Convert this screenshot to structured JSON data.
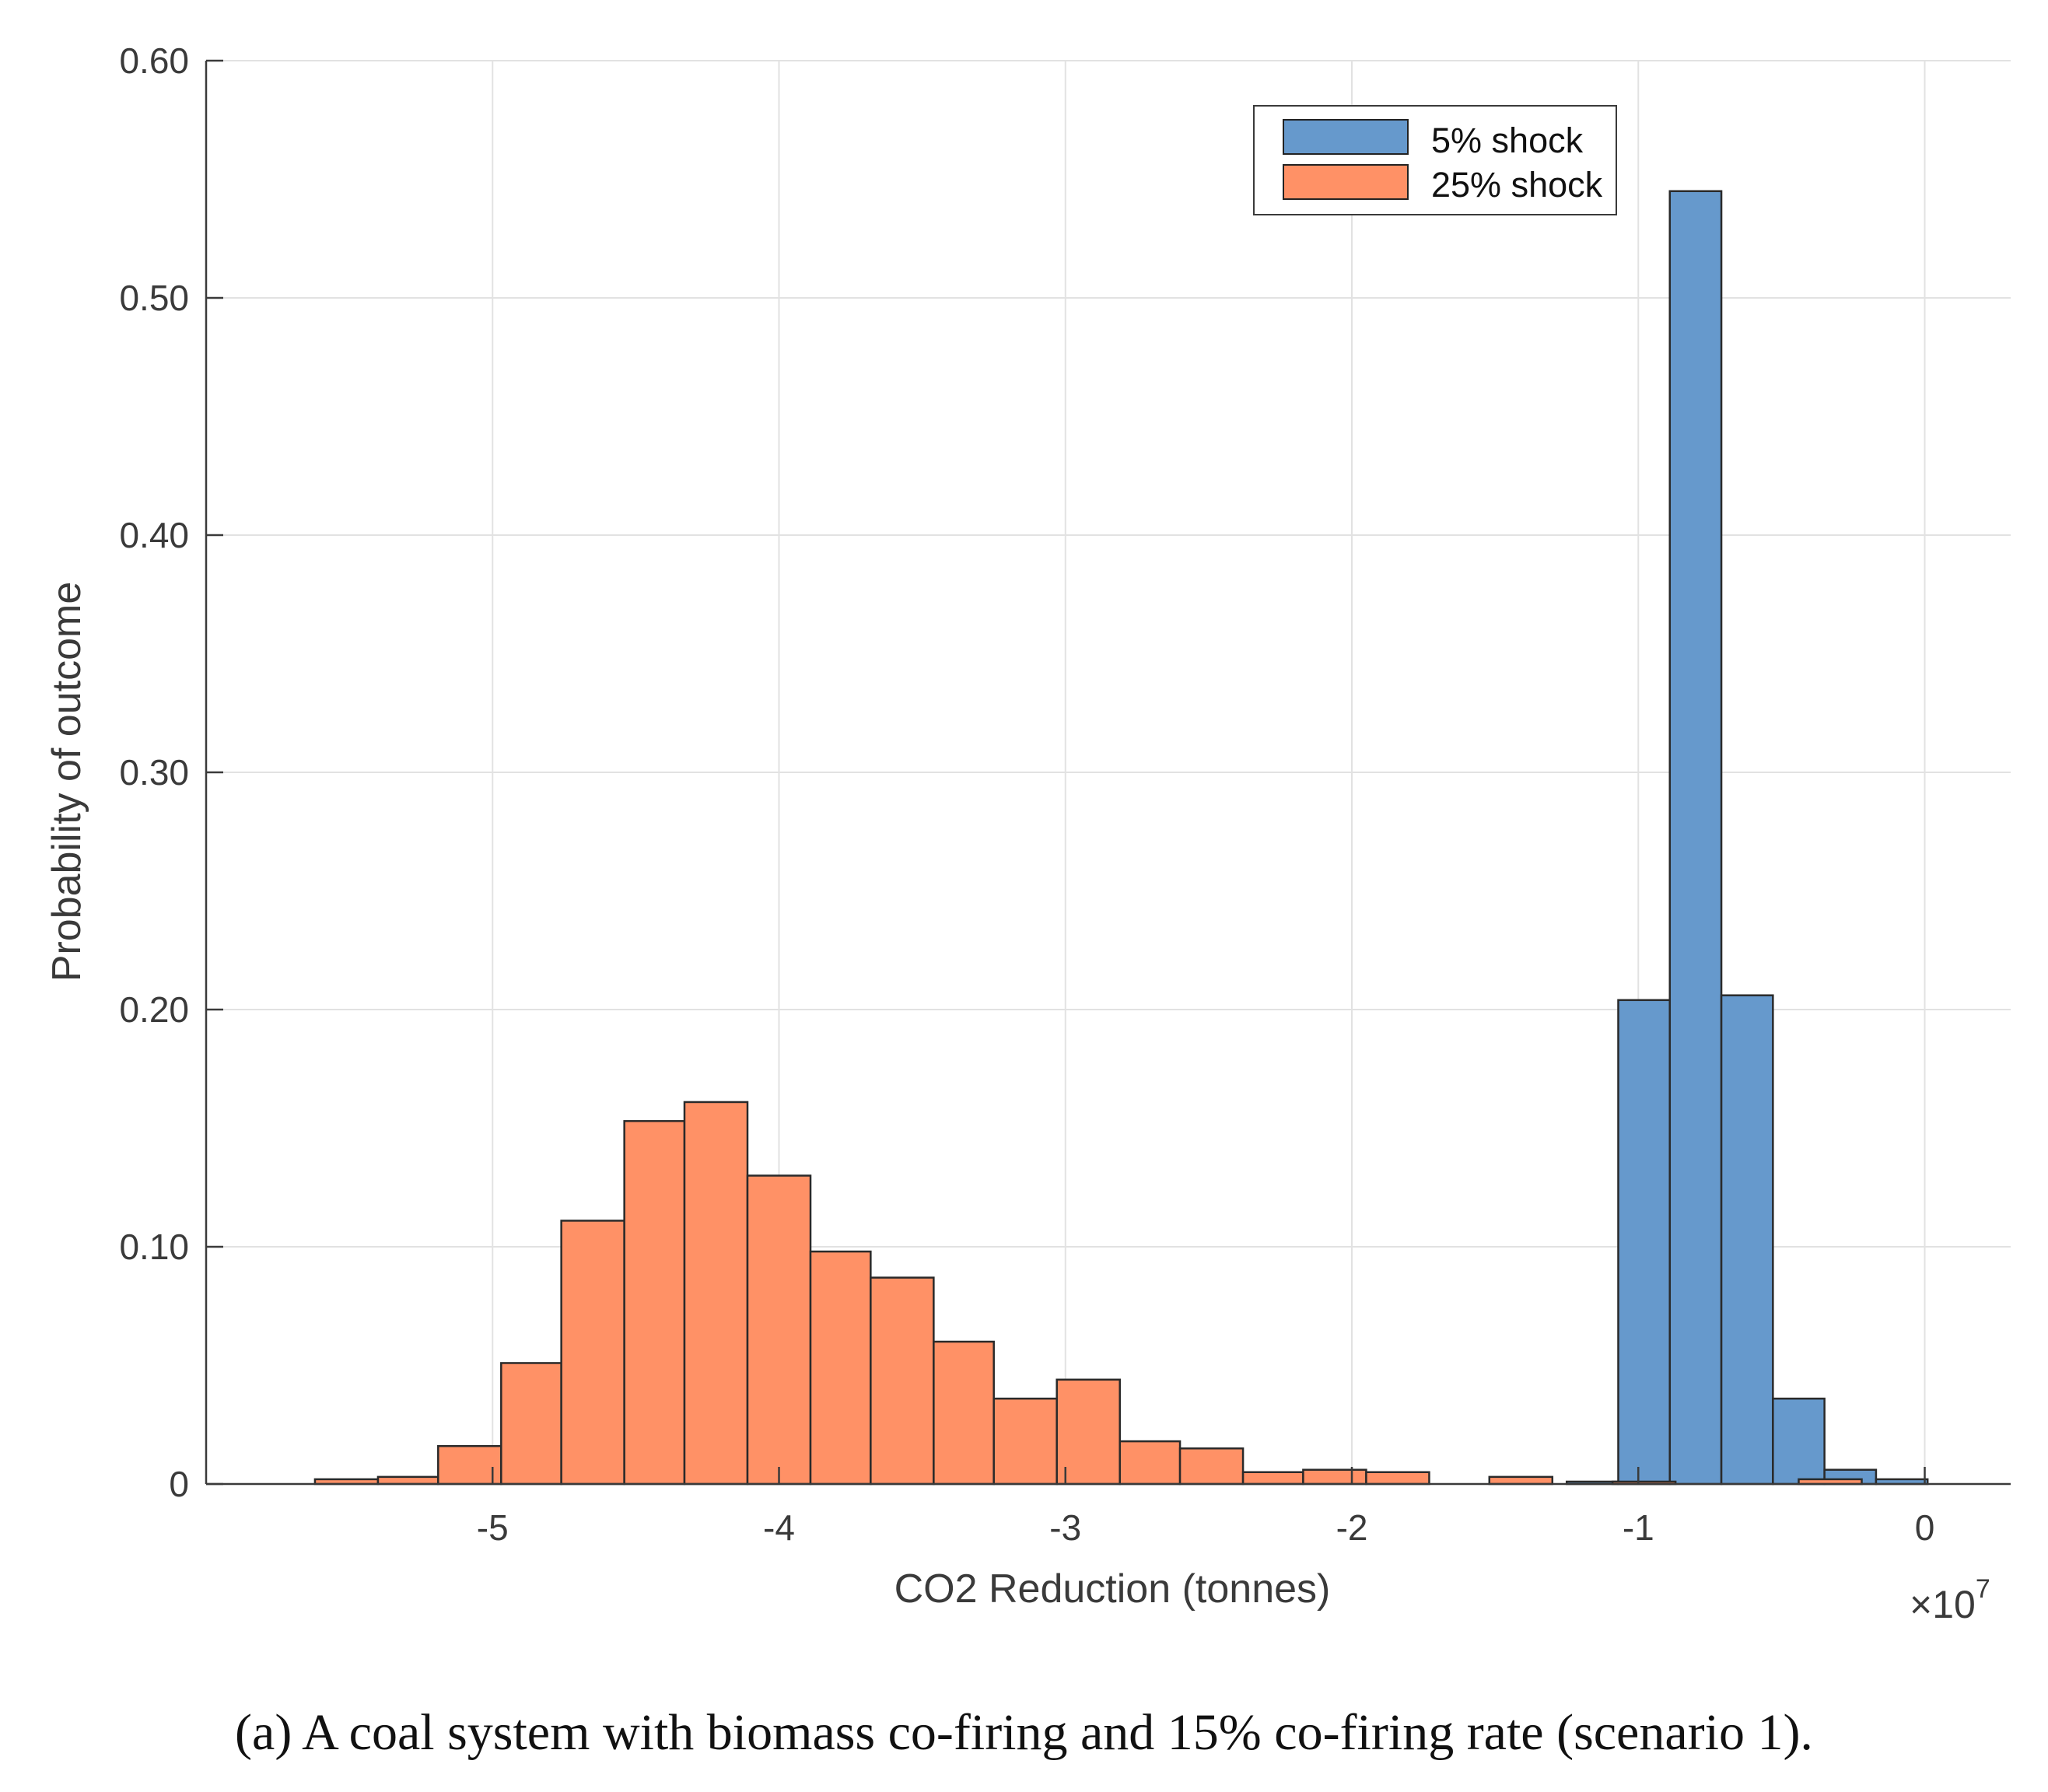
{
  "chart_data": {
    "type": "bar",
    "subtype": "histogram",
    "xlabel": "CO2 Reduction (tonnes)",
    "ylabel": "Probability of outcome",
    "x_exponent_label": "×10",
    "x_exponent_power": "7",
    "xlim": [
      -6.0,
      0.3
    ],
    "ylim": [
      0,
      0.6
    ],
    "xticks": [
      -5,
      -4,
      -3,
      -2,
      -1,
      0
    ],
    "xtick_labels": [
      "-5",
      "-4",
      "-3",
      "-2",
      "-1",
      "0"
    ],
    "yticks": [
      0,
      0.1,
      0.2,
      0.3,
      0.4,
      0.5,
      0.6
    ],
    "ytick_labels": [
      "0",
      "0.10",
      "0.20",
      "0.30",
      "0.40",
      "0.50",
      "0.60"
    ],
    "grid": true,
    "legend_position": "top-right",
    "series": [
      {
        "name": "5% shock",
        "color": "#6699CC",
        "bin_edges": [
          -1.25,
          -1.07,
          -0.89,
          -0.71,
          -0.53,
          -0.35,
          -0.17,
          0.01
        ],
        "values": [
          0.001,
          0.204,
          0.545,
          0.206,
          0.036,
          0.006,
          0.002
        ]
      },
      {
        "name": "25% shock",
        "color": "#FF9166",
        "bin_edges": [
          -5.62,
          -5.4,
          -5.19,
          -4.97,
          -4.76,
          -4.54,
          -4.33,
          -4.11,
          -3.89,
          -3.68,
          -3.46,
          -3.25,
          -3.03,
          -2.81,
          -2.6,
          -2.38,
          -2.17,
          -1.95,
          -1.73,
          -1.52,
          -1.3,
          -1.09,
          -0.87,
          -0.65,
          -0.44,
          -0.22
        ],
        "values": [
          0.002,
          0.003,
          0.016,
          0.051,
          0.111,
          0.153,
          0.161,
          0.13,
          0.098,
          0.087,
          0.06,
          0.036,
          0.044,
          0.018,
          0.015,
          0.005,
          0.006,
          0.005,
          0.0,
          0.003,
          0.0,
          0.001,
          0.0,
          0.0,
          0.002
        ]
      }
    ]
  },
  "caption": "(a) A coal system with biomass co-firing and 15% co-firing rate (scenario 1)."
}
